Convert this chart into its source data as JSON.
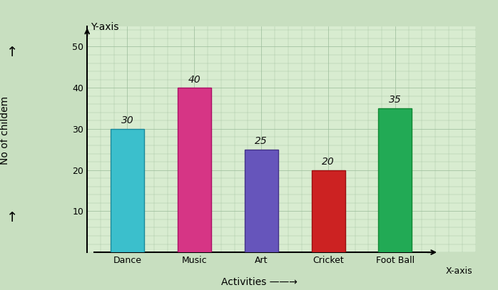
{
  "categories": [
    "Dance",
    "Music",
    "Art",
    "Cricket",
    "Foot Ball"
  ],
  "values": [
    30,
    40,
    25,
    20,
    35
  ],
  "bar_colors": [
    "#3bbfcc",
    "#d63585",
    "#6655bb",
    "#cc2222",
    "#22aa55"
  ],
  "bar_edge_colors": [
    "#1a8899",
    "#aa1166",
    "#443388",
    "#991111",
    "#118833"
  ],
  "ylabel": "No of childem",
  "y_axis_label": "Y-axis",
  "x_axis_label": "X-axis",
  "xlabel_main": "Activities ——→",
  "ylim": [
    0,
    55
  ],
  "yticks": [
    10,
    20,
    30,
    40,
    50
  ],
  "background_color": "#c8dfc0",
  "grid_color": "#99bb99",
  "plot_bg": "#d8ecd0",
  "value_label_fontsize": 10,
  "axis_label_fontsize": 10,
  "tick_label_fontsize": 9,
  "bar_width": 0.5
}
